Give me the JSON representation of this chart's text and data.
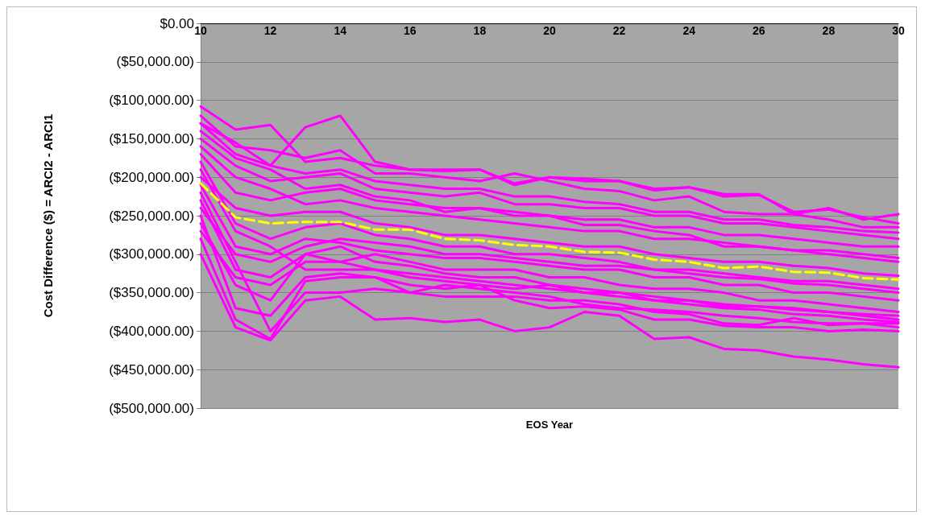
{
  "chart_data": {
    "type": "line",
    "xlabel": "EOS Year",
    "ylabel": "Cost Difference ($) = ARCI2 - ARCI1",
    "x": [
      10,
      11,
      12,
      13,
      14,
      15,
      16,
      17,
      18,
      19,
      20,
      21,
      22,
      23,
      24,
      25,
      26,
      27,
      28,
      29,
      30
    ],
    "xlim": [
      10,
      30
    ],
    "xticks": [
      10,
      12,
      14,
      16,
      18,
      20,
      22,
      24,
      26,
      28,
      30
    ],
    "ylim": [
      -500000,
      0
    ],
    "yticks": [
      {
        "value": 0,
        "label": "$0.00"
      },
      {
        "value": -50000,
        "label": "($50,000.00)"
      },
      {
        "value": -100000,
        "label": "($100,000.00)"
      },
      {
        "value": -150000,
        "label": "($150,000.00)"
      },
      {
        "value": -200000,
        "label": "($200,000.00)"
      },
      {
        "value": -250000,
        "label": "($250,000.00)"
      },
      {
        "value": -300000,
        "label": "($300,000.00)"
      },
      {
        "value": -350000,
        "label": "($350,000.00)"
      },
      {
        "value": -400000,
        "label": "($400,000.00)"
      },
      {
        "value": -450000,
        "label": "($450,000.00)"
      },
      {
        "value": -500000,
        "label": "($500,000.00)"
      }
    ],
    "grid": "y",
    "marker": "none",
    "series": [
      {
        "color": "#ff00ff",
        "values": [
          -130000,
          -155000,
          -185000,
          -135000,
          -120000,
          -180000,
          -190000,
          -190000,
          -190000,
          -210000,
          -200000,
          -205000,
          -205000,
          -217000,
          -213000,
          -222000,
          -222000,
          -248000,
          -240000,
          -255000,
          -248000
        ]
      },
      {
        "color": "#ff00ff",
        "values": [
          -108000,
          -138000,
          -132000,
          -180000,
          -175000,
          -185000,
          -190000,
          -192000,
          -190000,
          -208000,
          -200000,
          -202000,
          -205000,
          -215000,
          -213000,
          -225000,
          -223000,
          -245000,
          -242000,
          -252000,
          -260000
        ]
      },
      {
        "color": "#ff00ff",
        "values": [
          -120000,
          -160000,
          -165000,
          -175000,
          -165000,
          -195000,
          -195000,
          -200000,
          -205000,
          -195000,
          -205000,
          -215000,
          -218000,
          -230000,
          -225000,
          -245000,
          -248000,
          -248000,
          -255000,
          -265000,
          -265000
        ]
      },
      {
        "color": "#ff00ff",
        "values": [
          -300000,
          -395000,
          -412000,
          -360000,
          -355000,
          -385000,
          -383000,
          -388000,
          -385000,
          -400000,
          -395000,
          -375000,
          -380000,
          -410000,
          -408000,
          -423000,
          -425000,
          -433000,
          -437000,
          -443000,
          -447000
        ]
      },
      {
        "color": "#ff00ff",
        "values": [
          -280000,
          -385000,
          -410000,
          -335000,
          -330000,
          -330000,
          -340000,
          -345000,
          -340000,
          -360000,
          -370000,
          -368000,
          -372000,
          -385000,
          -385000,
          -393000,
          -395000,
          -395000,
          -400000,
          -398000,
          -400000
        ]
      },
      {
        "color": "#ff00ff",
        "values": [
          -250000,
          -370000,
          -380000,
          -330000,
          -325000,
          -330000,
          -350000,
          -355000,
          -355000,
          -355000,
          -360000,
          -360000,
          -365000,
          -375000,
          -378000,
          -390000,
          -392000,
          -383000,
          -392000,
          -390000,
          -390000
        ]
      },
      {
        "color": "#ff00ff",
        "values": [
          -230000,
          -320000,
          -330000,
          -300000,
          -310000,
          -300000,
          -310000,
          -320000,
          -320000,
          -320000,
          -330000,
          -330000,
          -340000,
          -345000,
          -345000,
          -350000,
          -360000,
          -360000,
          -365000,
          -370000,
          -375000
        ]
      },
      {
        "color": "#ff00ff",
        "values": [
          -210000,
          -290000,
          -300000,
          -280000,
          -285000,
          -295000,
          -300000,
          -305000,
          -305000,
          -310000,
          -315000,
          -320000,
          -320000,
          -330000,
          -330000,
          -340000,
          -340000,
          -350000,
          -350000,
          -355000,
          -360000
        ]
      },
      {
        "color": "#ff00ff",
        "values": [
          -200000,
          -240000,
          -250000,
          -245000,
          -245000,
          -260000,
          -265000,
          -275000,
          -275000,
          -280000,
          -285000,
          -290000,
          -290000,
          -300000,
          -305000,
          -310000,
          -310000,
          -315000,
          -318000,
          -325000,
          -328000
        ]
      },
      {
        "color": "#ff00ff",
        "values": [
          -170000,
          -220000,
          -230000,
          -220000,
          -215000,
          -230000,
          -235000,
          -240000,
          -240000,
          -250000,
          -250000,
          -255000,
          -255000,
          -265000,
          -265000,
          -275000,
          -275000,
          -280000,
          -285000,
          -290000,
          -290000
        ]
      },
      {
        "color": "#ff00ff",
        "values": [
          -150000,
          -185000,
          -205000,
          -200000,
          -195000,
          -215000,
          -220000,
          -225000,
          -220000,
          -235000,
          -235000,
          -240000,
          -240000,
          -250000,
          -250000,
          -260000,
          -260000,
          -265000,
          -270000,
          -275000,
          -280000
        ]
      },
      {
        "color": "#ff00ff",
        "values": [
          -140000,
          -175000,
          -190000,
          -215000,
          -210000,
          -225000,
          -230000,
          -245000,
          -240000,
          -245000,
          -250000,
          -262000,
          -262000,
          -270000,
          -275000,
          -290000,
          -290000,
          -295000,
          -300000,
          -305000,
          -310000
        ]
      },
      {
        "color": "#ff00ff",
        "values": [
          -180000,
          -260000,
          -280000,
          -265000,
          -260000,
          -275000,
          -280000,
          -290000,
          -290000,
          -300000,
          -300000,
          -305000,
          -310000,
          -320000,
          -320000,
          -325000,
          -330000,
          -335000,
          -335000,
          -340000,
          -345000
        ]
      },
      {
        "color": "#ff00ff",
        "values": [
          -260000,
          -340000,
          -360000,
          -300000,
          -290000,
          -310000,
          -315000,
          -325000,
          -330000,
          -330000,
          -340000,
          -345000,
          -350000,
          -355000,
          -360000,
          -365000,
          -368000,
          -370000,
          -375000,
          -380000,
          -385000
        ]
      },
      {
        "color": "#ff00ff",
        "values": [
          -240000,
          -300000,
          -310000,
          -290000,
          -280000,
          -285000,
          -290000,
          -300000,
          -300000,
          -305000,
          -310000,
          -315000,
          -315000,
          -320000,
          -325000,
          -330000,
          -332000,
          -338000,
          -340000,
          -345000,
          -350000
        ]
      },
      {
        "color": "#ff00ff",
        "values": [
          -160000,
          -200000,
          -215000,
          -235000,
          -230000,
          -240000,
          -245000,
          -250000,
          -255000,
          -260000,
          -265000,
          -270000,
          -270000,
          -280000,
          -280000,
          -285000,
          -290000,
          -295000,
          -295000,
          -300000,
          -305000
        ]
      },
      {
        "color": "#ff00ff",
        "values": [
          -190000,
          -270000,
          -290000,
          -320000,
          -320000,
          -320000,
          -330000,
          -335000,
          -340000,
          -345000,
          -340000,
          -350000,
          -355000,
          -360000,
          -365000,
          -370000,
          -372000,
          -378000,
          -380000,
          -385000,
          -388000
        ]
      },
      {
        "color": "#ff00ff",
        "values": [
          -220000,
          -310000,
          -400000,
          -350000,
          -350000,
          -345000,
          -350000,
          -340000,
          -345000,
          -350000,
          -355000,
          -365000,
          -370000,
          -372000,
          -375000,
          -380000,
          -383000,
          -388000,
          -390000,
          -390000,
          -395000
        ]
      },
      {
        "color": "#ff00ff",
        "values": [
          -130000,
          -170000,
          -185000,
          -195000,
          -190000,
          -205000,
          -210000,
          -215000,
          -215000,
          -225000,
          -225000,
          -232000,
          -235000,
          -245000,
          -245000,
          -255000,
          -255000,
          -262000,
          -265000,
          -270000,
          -272000
        ]
      },
      {
        "color": "#ff00ff",
        "values": [
          -270000,
          -330000,
          -340000,
          -310000,
          -310000,
          -320000,
          -325000,
          -330000,
          -335000,
          -340000,
          -345000,
          -350000,
          -350000,
          -360000,
          -360000,
          -368000,
          -368000,
          -372000,
          -375000,
          -378000,
          -380000
        ]
      },
      {
        "color": "#ffff00",
        "line_style": "dashed",
        "values": [
          -208000,
          -252000,
          -260000,
          -258000,
          -258000,
          -268000,
          -268000,
          -280000,
          -282000,
          -288000,
          -290000,
          -297000,
          -298000,
          -307000,
          -310000,
          -318000,
          -316000,
          -323000,
          -324000,
          -331000,
          -333000
        ]
      }
    ]
  }
}
